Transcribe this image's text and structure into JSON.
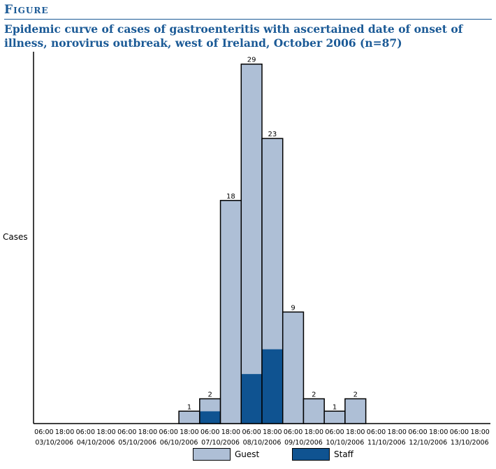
{
  "figure_label": "Figure",
  "title": "Epidemic curve of cases of gastroenteritis with ascertained date of onset of illness, norovirus outbreak, west of Ireland, October 2006 (n=87)",
  "colors": {
    "guest": "#aebfd6",
    "staff": "#0f5391",
    "accent": "#1b5a96"
  },
  "chart_data": {
    "type": "bar",
    "stacked": true,
    "ylabel": "Cases",
    "ylim": [
      0,
      30
    ],
    "grid": false,
    "legend_position": "bottom-center",
    "x_time_labels": [
      "06:00",
      "18:00",
      "06:00",
      "18:00",
      "06:00",
      "18:00",
      "06:00",
      "18:00",
      "06:00",
      "18:00",
      "06:00",
      "18:00",
      "06:00",
      "18:00",
      "06:00",
      "18:00",
      "06:00",
      "18:00",
      "06:00",
      "18:00",
      "06:00",
      "18:00"
    ],
    "x_date_labels": [
      "03/10/2006",
      "04/10/2006",
      "05/10/2006",
      "06/10/2006",
      "07/10/2006",
      "08/10/2006",
      "09/10/2006",
      "10/10/2006",
      "11/10/2006",
      "12/10/2006",
      "13/10/2006"
    ],
    "totals": [
      0,
      0,
      0,
      0,
      0,
      0,
      0,
      1,
      2,
      18,
      29,
      23,
      9,
      2,
      1,
      2,
      0,
      0,
      0,
      0,
      0,
      0
    ],
    "series": [
      {
        "name": "Guest",
        "values": [
          0,
          0,
          0,
          0,
          0,
          0,
          0,
          1,
          1,
          18,
          25,
          17,
          9,
          2,
          1,
          2,
          0,
          0,
          0,
          0,
          0,
          0
        ]
      },
      {
        "name": "Staff",
        "values": [
          0,
          0,
          0,
          0,
          0,
          0,
          0,
          0,
          1,
          0,
          4,
          6,
          0,
          0,
          0,
          0,
          0,
          0,
          0,
          0,
          0,
          0
        ]
      }
    ]
  }
}
